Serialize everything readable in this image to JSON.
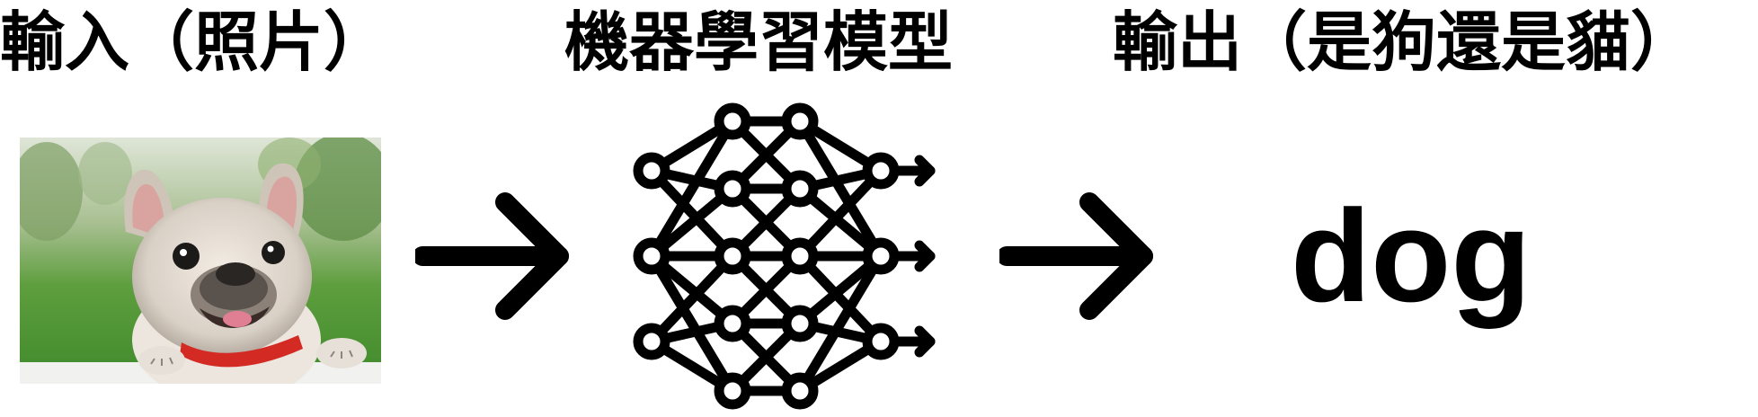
{
  "labels": {
    "input": "輸入（照片）",
    "model": "機器學習模型",
    "output": "輸出（是狗還是貓）"
  },
  "result": "dog",
  "icons": {
    "photo": "french-bulldog-photo",
    "arrow": "right-arrow-icon",
    "model": "neural-network-icon"
  },
  "colors": {
    "ink": "#000000",
    "background": "#ffffff",
    "grass": "#4f9a3a",
    "collar": "#d42a24"
  }
}
